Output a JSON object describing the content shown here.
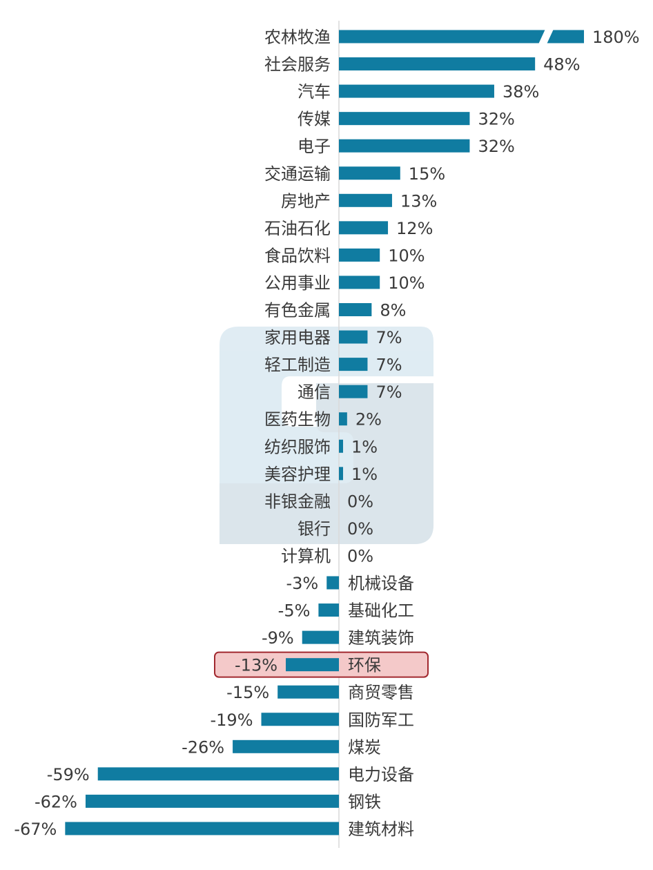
{
  "chart_data": {
    "type": "bar",
    "orientation": "horizontal",
    "title": "",
    "xlabel": "",
    "ylabel": "",
    "value_unit": "%",
    "axis_break": {
      "category": "农林牧渔",
      "note": "bar truncated with a break mark"
    },
    "highlight": {
      "category": "环保",
      "color": "#f4c9c9",
      "border": "#a1282e"
    },
    "bar_color": "#107ca1",
    "categories": [
      "农林牧渔",
      "社会服务",
      "汽车",
      "传媒",
      "电子",
      "交通运输",
      "房地产",
      "石油石化",
      "食品饮料",
      "公用事业",
      "有色金属",
      "家用电器",
      "轻工制造",
      "通信",
      "医药生物",
      "纺织服饰",
      "美容护理",
      "非银金融",
      "银行",
      "计算机",
      "机械设备",
      "基础化工",
      "建筑装饰",
      "环保",
      "商贸零售",
      "国防军工",
      "煤炭",
      "电力设备",
      "钢铁",
      "建筑材料"
    ],
    "values": [
      180,
      48,
      38,
      32,
      32,
      15,
      13,
      12,
      10,
      10,
      8,
      7,
      7,
      7,
      2,
      1,
      1,
      0,
      0,
      0,
      -3,
      -5,
      -9,
      -13,
      -15,
      -19,
      -26,
      -59,
      -62,
      -67
    ],
    "value_labels": [
      "180%",
      "48%",
      "38%",
      "32%",
      "32%",
      "15%",
      "13%",
      "12%",
      "10%",
      "10%",
      "8%",
      "7%",
      "7%",
      "7%",
      "2%",
      "1%",
      "1%",
      "0%",
      "0%",
      "0%",
      "-3%",
      "-5%",
      "-9%",
      "-13%",
      "-15%",
      "-19%",
      "-26%",
      "-59%",
      "-62%",
      "-67%"
    ]
  }
}
